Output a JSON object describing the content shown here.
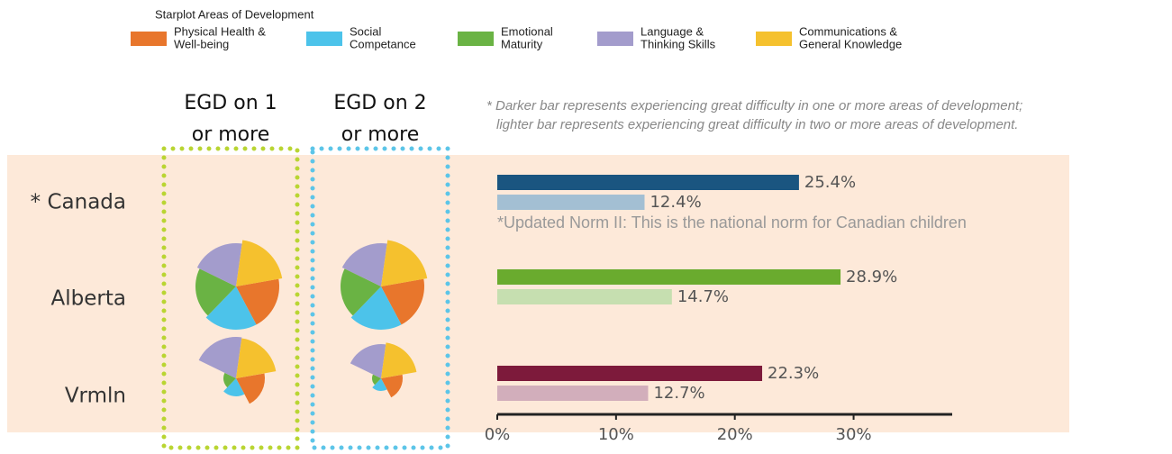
{
  "chart_data": {
    "type": "bar",
    "legend_title": "Starplot Areas of Development",
    "areas": [
      {
        "name": [
          "Physical Health &",
          "Well-being"
        ],
        "color": "#e8762c"
      },
      {
        "name": [
          "Social",
          "Competance"
        ],
        "color": "#4cc3ea"
      },
      {
        "name": [
          "Emotional",
          "Maturity"
        ],
        "color": "#6ab344"
      },
      {
        "name": [
          "Language &",
          "Thinking Skills"
        ],
        "color": "#a39ccc"
      },
      {
        "name": [
          "Communications &",
          "General Knowledge"
        ],
        "color": "#f5c12e"
      }
    ],
    "columns": [
      {
        "label": [
          "EGD on 1",
          "or more"
        ],
        "color": "#b9d532"
      },
      {
        "label": [
          "EGD on 2",
          "or more"
        ],
        "color": "#5cc5e8"
      }
    ],
    "note": [
      "* Darker bar represents experiencing great difficulty in one or more areas of development;",
      "lighter bar represents experiencing great difficulty in two or more areas of development."
    ],
    "xlim": [
      0,
      38.3
    ],
    "xticks": [
      {
        "value": 0,
        "label": "0%"
      },
      {
        "value": 10,
        "label": "10%"
      },
      {
        "value": 20,
        "label": "20%"
      },
      {
        "value": 30,
        "label": "30%"
      }
    ],
    "rows": [
      {
        "label": "* Canada",
        "values": [
          25.4,
          12.4
        ],
        "value_labels": [
          "25.4%",
          "12.4%"
        ],
        "colors": [
          "#1a5580",
          "#a3bfd3"
        ],
        "footnote": "*Updated Norm II: This is the national norm for Canadian children"
      },
      {
        "label": "Alberta",
        "values": [
          28.9,
          14.7
        ],
        "value_labels": [
          "28.9%",
          "14.7%"
        ],
        "colors": [
          "#6aab2e",
          "#c6dfb0"
        ],
        "starplots": [
          [
            48,
            48,
            45,
            48,
            52
          ],
          [
            48,
            48,
            45,
            48,
            52
          ]
        ]
      },
      {
        "label": "Vrmln",
        "values": [
          22.3,
          12.7
        ],
        "value_labels": [
          "22.3%",
          "12.7%"
        ],
        "colors": [
          "#7d1a3b",
          "#d2aebb"
        ],
        "starplots": [
          [
            32,
            20,
            14,
            46,
            45
          ],
          [
            24,
            14,
            10,
            38,
            40
          ]
        ]
      }
    ]
  }
}
